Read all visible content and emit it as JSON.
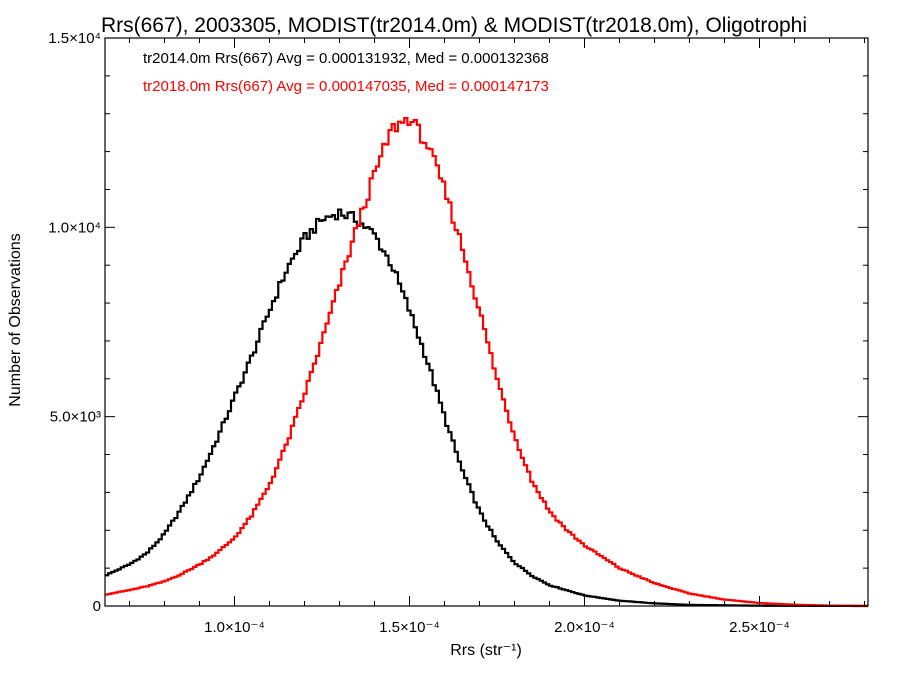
{
  "chart_data": {
    "type": "histogram",
    "title": "Rrs(667), 2003305, MODIST(tr2014.0m) & MODIST(tr2018.0m), Oligotrophi",
    "xlabel": "Rrs (str⁻¹)",
    "ylabel": "Number of Observations",
    "xlim": [
      6.3e-05,
      0.000281
    ],
    "ylim": [
      0,
      15000
    ],
    "x_ticks": [
      {
        "value": 0.0001,
        "label": "1.0×10⁻⁴"
      },
      {
        "value": 0.00015,
        "label": "1.5×10⁻⁴"
      },
      {
        "value": 0.0002,
        "label": "2.0×10⁻⁴"
      },
      {
        "value": 0.00025,
        "label": "2.5×10⁻⁴"
      }
    ],
    "y_ticks": [
      {
        "value": 0,
        "label": "0"
      },
      {
        "value": 5000,
        "label": "5.0×10³"
      },
      {
        "value": 10000,
        "label": "1.0×10⁴"
      },
      {
        "value": 15000,
        "label": "1.5×10⁴"
      }
    ],
    "grid": false,
    "legend_position": "top-left",
    "series": [
      {
        "name": "tr2014.0m",
        "color": "#000000",
        "label": "tr2014.0m Rrs(667) Avg = 0.000131932, Med = 0.000132368",
        "points": [
          [
            6.3e-05,
            800
          ],
          [
            7e-05,
            1100
          ],
          [
            7.5e-05,
            1400
          ],
          [
            8e-05,
            1900
          ],
          [
            8.5e-05,
            2600
          ],
          [
            9e-05,
            3400
          ],
          [
            9.5e-05,
            4400
          ],
          [
            0.0001,
            5500
          ],
          [
            0.000105,
            6600
          ],
          [
            0.00011,
            7800
          ],
          [
            0.000115,
            8900
          ],
          [
            0.00012,
            9700
          ],
          [
            0.000125,
            10200
          ],
          [
            0.00013,
            10400
          ],
          [
            0.000135,
            10200
          ],
          [
            0.00014,
            9800
          ],
          [
            0.000145,
            9000
          ],
          [
            0.00015,
            7800
          ],
          [
            0.000155,
            6500
          ],
          [
            0.00016,
            5000
          ],
          [
            0.000165,
            3600
          ],
          [
            0.00017,
            2500
          ],
          [
            0.000175,
            1700
          ],
          [
            0.00018,
            1150
          ],
          [
            0.000185,
            800
          ],
          [
            0.00019,
            550
          ],
          [
            0.0002,
            280
          ],
          [
            0.00021,
            140
          ],
          [
            0.00022,
            70
          ],
          [
            0.00023,
            30
          ],
          [
            0.00025,
            8
          ],
          [
            0.000281,
            0
          ]
        ]
      },
      {
        "name": "tr2018.0m",
        "color": "#ff0000",
        "label": "tr2018.0m Rrs(667) Avg = 0.000147035, Med = 0.000147173",
        "points": [
          [
            6.3e-05,
            300
          ],
          [
            7e-05,
            420
          ],
          [
            7.5e-05,
            520
          ],
          [
            8e-05,
            650
          ],
          [
            8.5e-05,
            850
          ],
          [
            9e-05,
            1100
          ],
          [
            9.5e-05,
            1400
          ],
          [
            0.0001,
            1800
          ],
          [
            0.000105,
            2400
          ],
          [
            0.00011,
            3200
          ],
          [
            0.000115,
            4300
          ],
          [
            0.00012,
            5600
          ],
          [
            0.000125,
            7000
          ],
          [
            0.00013,
            8500
          ],
          [
            0.000135,
            10000
          ],
          [
            0.00014,
            11400
          ],
          [
            0.000145,
            12600
          ],
          [
            0.00015,
            12900
          ],
          [
            0.000155,
            12200
          ],
          [
            0.00016,
            11000
          ],
          [
            0.000165,
            9500
          ],
          [
            0.00017,
            7800
          ],
          [
            0.000175,
            6000
          ],
          [
            0.00018,
            4500
          ],
          [
            0.000185,
            3300
          ],
          [
            0.00019,
            2500
          ],
          [
            0.000195,
            2000
          ],
          [
            0.0002,
            1600
          ],
          [
            0.00021,
            1000
          ],
          [
            0.00022,
            600
          ],
          [
            0.00023,
            330
          ],
          [
            0.00024,
            170
          ],
          [
            0.00025,
            80
          ],
          [
            0.00026,
            35
          ],
          [
            0.00027,
            10
          ],
          [
            0.000281,
            3
          ]
        ]
      }
    ]
  }
}
